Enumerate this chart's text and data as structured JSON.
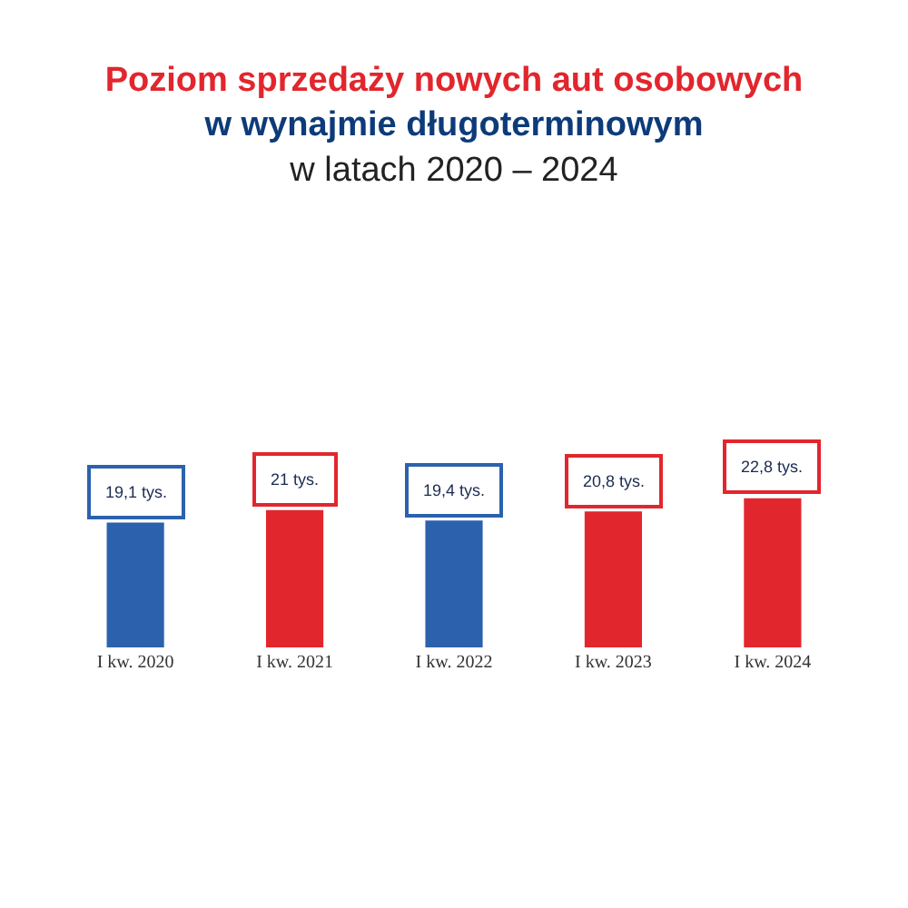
{
  "chart_data": {
    "type": "bar",
    "title": "Poziom sprzedaży nowych aut osobowych\nw wynajmie długoterminowym\nw latach 2020 – 2024",
    "categories": [
      "I kw. 2020",
      "I kw. 2021",
      "I kw. 2022",
      "I kw. 2023",
      "I kw. 2024"
    ],
    "values": [
      19.1,
      21,
      19.4,
      20.8,
      22.8
    ],
    "colors": [
      "#2c62ad",
      "#e2262d",
      "#2c62ad",
      "#e2262d",
      "#e2262d"
    ],
    "value_labels": [
      "19,1 tys.",
      "21 tys.",
      "19,4 tys.",
      "20,8 tys.",
      "22,8 tys."
    ],
    "tick_labels": "x",
    "legend": false
  }
}
